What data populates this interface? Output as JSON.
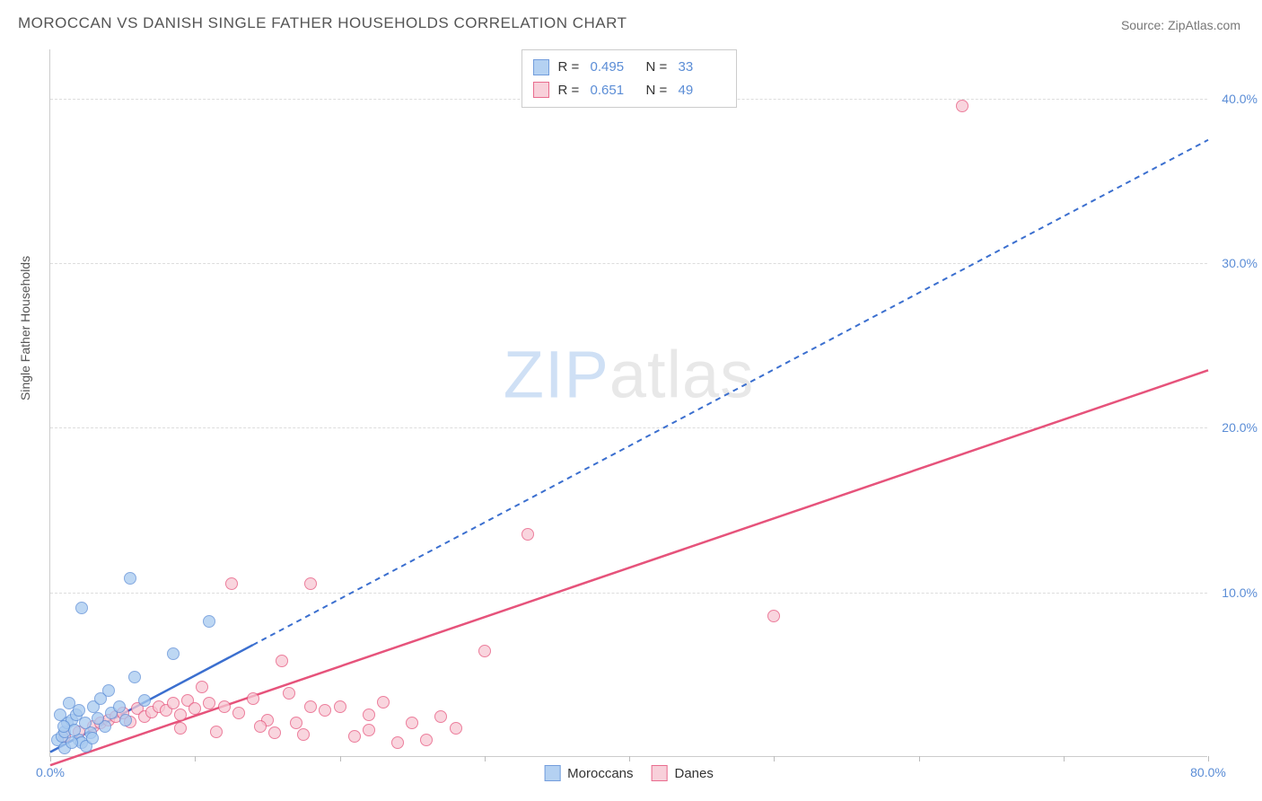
{
  "title": "MOROCCAN VS DANISH SINGLE FATHER HOUSEHOLDS CORRELATION CHART",
  "source_label": "Source: ",
  "source_value": "ZipAtlas.com",
  "ylabel": "Single Father Households",
  "watermark_a": "ZIP",
  "watermark_b": "atlas",
  "chart": {
    "type": "scatter",
    "xlim": [
      0,
      80
    ],
    "ylim": [
      0,
      43
    ],
    "x_ticks": [
      0,
      10,
      20,
      30,
      40,
      50,
      60,
      70,
      80
    ],
    "x_tick_labels": {
      "0": "0.0%",
      "80": "80.0%"
    },
    "y_grid": [
      10,
      20,
      30,
      40
    ],
    "y_tick_labels": {
      "10": "10.0%",
      "20": "20.0%",
      "30": "30.0%",
      "40": "40.0%"
    },
    "background_color": "#ffffff",
    "grid_color": "#dddddd",
    "axis_color": "#cccccc",
    "label_fontsize": 14,
    "tick_color": "#5b8dd6",
    "series": {
      "moroccans": {
        "label": "Moroccans",
        "legend_r_label": "R =",
        "legend_r_value": "0.495",
        "legend_n_label": "N =",
        "legend_n_value": "33",
        "fill_color": "#a8caf0",
        "stroke_color": "#5b8dd6",
        "line_color": "#3b6fcf",
        "line_dash": "6,5",
        "line_width": 2,
        "marker_opacity": 0.75,
        "trend": {
          "x1": 0,
          "y1": 0.3,
          "x2": 80,
          "y2": 37.5,
          "solid_until_x": 14
        },
        "points": [
          [
            0.5,
            1.0
          ],
          [
            0.8,
            1.2
          ],
          [
            1.0,
            1.5
          ],
          [
            1.2,
            2.0
          ],
          [
            1.5,
            2.2
          ],
          [
            1.8,
            2.5
          ],
          [
            2.0,
            2.8
          ],
          [
            2.0,
            1.0
          ],
          [
            2.2,
            0.8
          ],
          [
            2.5,
            0.6
          ],
          [
            2.8,
            1.4
          ],
          [
            3.0,
            3.0
          ],
          [
            3.5,
            3.5
          ],
          [
            4.0,
            4.0
          ],
          [
            2.2,
            9.0
          ],
          [
            5.5,
            10.8
          ],
          [
            1.0,
            0.5
          ],
          [
            1.5,
            0.8
          ],
          [
            0.7,
            2.5
          ],
          [
            1.3,
            3.2
          ],
          [
            3.8,
            1.8
          ],
          [
            4.2,
            2.6
          ],
          [
            4.8,
            3.0
          ],
          [
            5.2,
            2.2
          ],
          [
            5.8,
            4.8
          ],
          [
            6.5,
            3.4
          ],
          [
            8.5,
            6.2
          ],
          [
            11,
            8.2
          ],
          [
            1.7,
            1.6
          ],
          [
            2.4,
            2.0
          ],
          [
            2.9,
            1.1
          ],
          [
            3.3,
            2.3
          ],
          [
            0.9,
            1.8
          ]
        ]
      },
      "danes": {
        "label": "Danes",
        "legend_r_label": "R =",
        "legend_r_value": "0.651",
        "legend_n_label": "N =",
        "legend_n_value": "49",
        "fill_color": "#f7c8d4",
        "stroke_color": "#e6537b",
        "line_color": "#e6537b",
        "line_dash": "",
        "line_width": 2.5,
        "marker_opacity": 0.75,
        "trend": {
          "x1": 0,
          "y1": -0.5,
          "x2": 80,
          "y2": 23.5
        },
        "points": [
          [
            1,
            1.2
          ],
          [
            2,
            1.5
          ],
          [
            3,
            1.8
          ],
          [
            3.5,
            2.0
          ],
          [
            4,
            2.2
          ],
          [
            4.5,
            2.4
          ],
          [
            5,
            2.6
          ],
          [
            5.5,
            2.1
          ],
          [
            6,
            2.9
          ],
          [
            6.5,
            2.4
          ],
          [
            7,
            2.7
          ],
          [
            7.5,
            3.0
          ],
          [
            8,
            2.8
          ],
          [
            8.5,
            3.2
          ],
          [
            9,
            2.5
          ],
          [
            9.5,
            3.4
          ],
          [
            10,
            2.9
          ],
          [
            11,
            3.2
          ],
          [
            12,
            3.0
          ],
          [
            12.5,
            10.5
          ],
          [
            13,
            2.6
          ],
          [
            14,
            3.5
          ],
          [
            15,
            2.2
          ],
          [
            15.5,
            1.4
          ],
          [
            16,
            5.8
          ],
          [
            17,
            2.0
          ],
          [
            17.5,
            1.3
          ],
          [
            18,
            3.0
          ],
          [
            18,
            10.5
          ],
          [
            19,
            2.8
          ],
          [
            20,
            3.0
          ],
          [
            21,
            1.2
          ],
          [
            22,
            2.5
          ],
          [
            23,
            3.3
          ],
          [
            24,
            0.8
          ],
          [
            25,
            2.0
          ],
          [
            26,
            1.0
          ],
          [
            27,
            2.4
          ],
          [
            28,
            1.7
          ],
          [
            30,
            6.4
          ],
          [
            22,
            1.6
          ],
          [
            14.5,
            1.8
          ],
          [
            11.5,
            1.5
          ],
          [
            10.5,
            4.2
          ],
          [
            9,
            1.7
          ],
          [
            33,
            13.5
          ],
          [
            50,
            8.5
          ],
          [
            63,
            39.5
          ],
          [
            16.5,
            3.8
          ]
        ]
      }
    }
  }
}
